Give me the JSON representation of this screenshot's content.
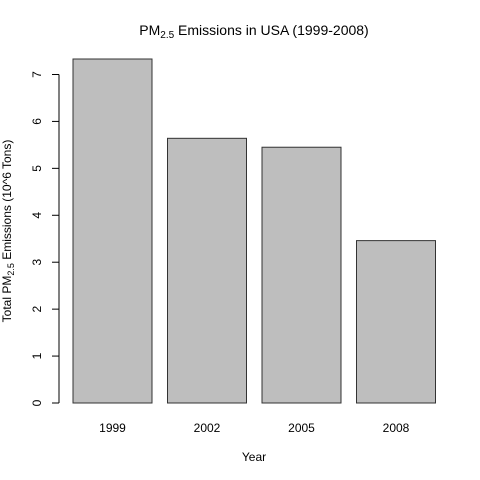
{
  "chart_data": {
    "type": "bar",
    "title": {
      "prefix": "PM",
      "subscript": "2.5",
      "suffix": " Emissions in USA (1999-2008)"
    },
    "xlabel": "Year",
    "ylabel": {
      "prefix": "Total PM",
      "subscript": "2.5",
      "suffix": " Emissions (10^6 Tons)"
    },
    "categories": [
      "1999",
      "2002",
      "2005",
      "2008"
    ],
    "values": [
      7.33,
      5.64,
      5.45,
      3.46
    ],
    "ylim": [
      0,
      7.33
    ],
    "yticks": [
      0,
      1,
      2,
      3,
      4,
      5,
      6,
      7
    ],
    "ytick_labels": [
      "0",
      "1",
      "2",
      "3",
      "4",
      "5",
      "6",
      "7"
    ],
    "bar_color": "#bebebe",
    "border_color": "#333333",
    "grid": false,
    "legend": "none"
  }
}
